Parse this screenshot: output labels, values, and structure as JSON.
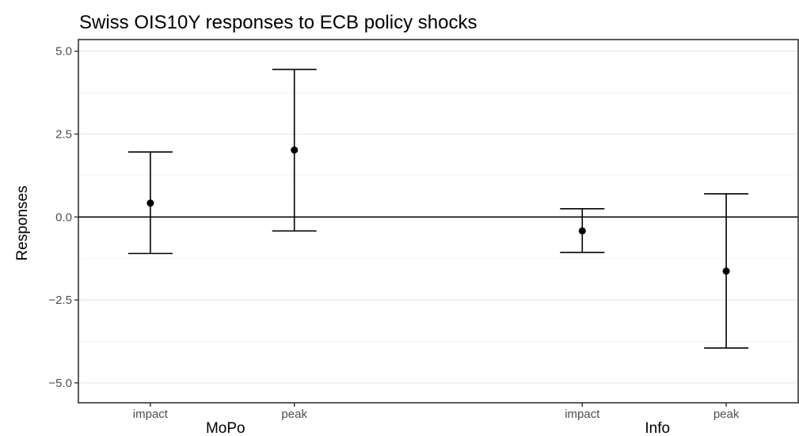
{
  "chart_data": {
    "type": "errorbar",
    "title": "Swiss OIS10Y responses to ECB policy shocks",
    "xlabel": "",
    "ylabel": "Responses",
    "ylim": [
      -5.6,
      5.35
    ],
    "yticks": [
      5.0,
      2.5,
      0.0,
      -2.5,
      -5.0
    ],
    "ytick_labels": [
      "5.0",
      "2.5",
      "0.0",
      "−2.5",
      "−5.0"
    ],
    "grid": "horizontal",
    "reference_line": 0,
    "groups": [
      {
        "name": "MoPo",
        "points": [
          {
            "label": "impact",
            "value": 0.42,
            "lower": -1.1,
            "upper": 1.96
          },
          {
            "label": "peak",
            "value": 2.02,
            "lower": -0.42,
            "upper": 4.45
          }
        ]
      },
      {
        "name": "Info",
        "points": [
          {
            "label": "impact",
            "value": -0.42,
            "lower": -1.07,
            "upper": 0.25
          },
          {
            "label": "peak",
            "value": -1.63,
            "lower": -3.95,
            "upper": 0.7
          }
        ]
      }
    ]
  }
}
